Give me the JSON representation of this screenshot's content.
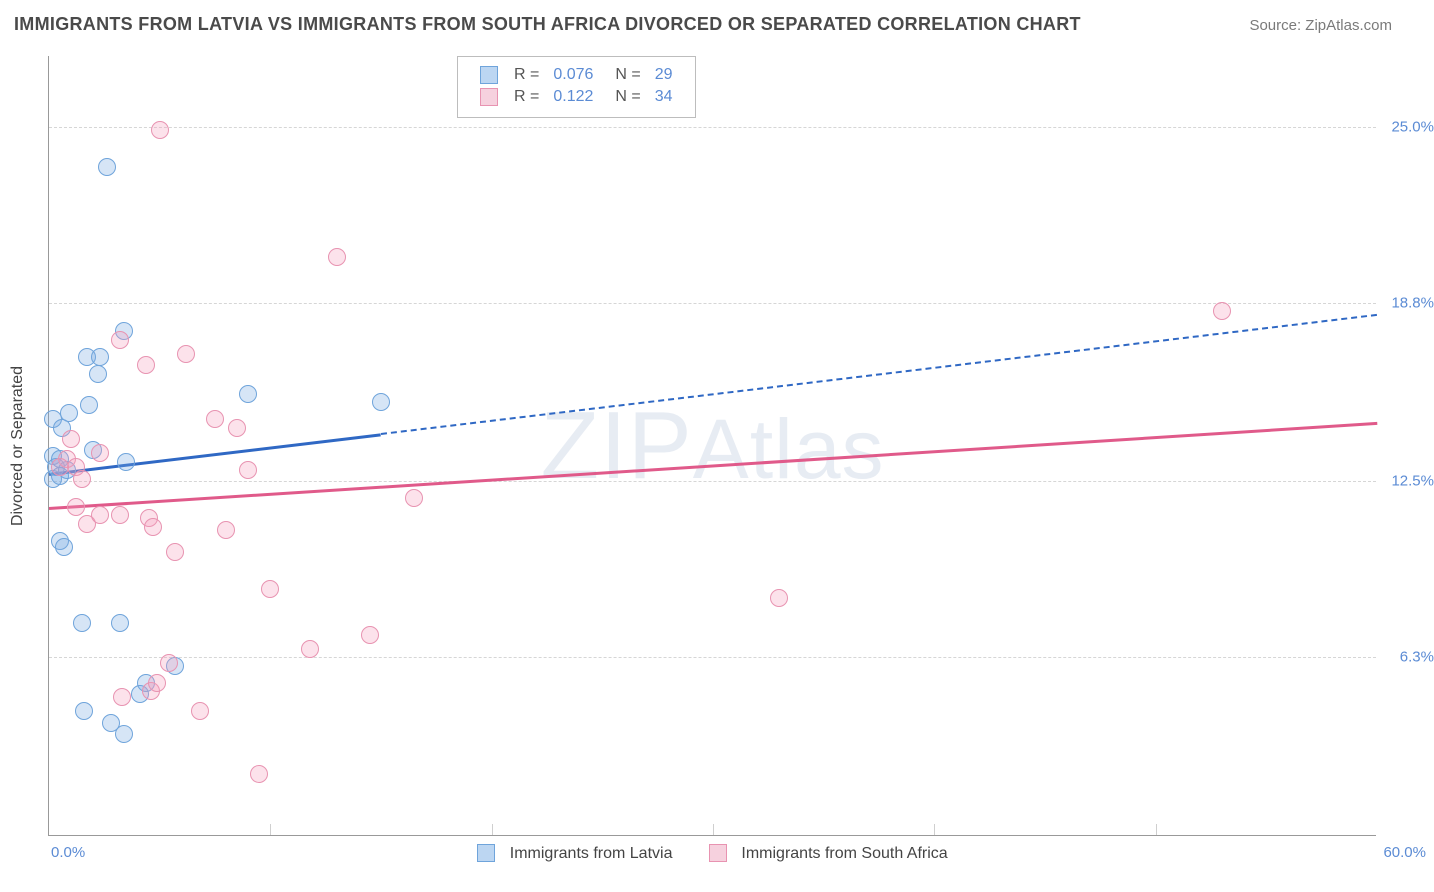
{
  "header": {
    "title": "IMMIGRANTS FROM LATVIA VS IMMIGRANTS FROM SOUTH AFRICA DIVORCED OR SEPARATED CORRELATION CHART",
    "source": "Source: ZipAtlas.com"
  },
  "chart": {
    "type": "scatter",
    "watermark": "ZIPAtlas",
    "yaxis": {
      "title": "Divorced or Separated",
      "min": 0.0,
      "max": 27.5,
      "ticks": [
        6.3,
        12.5,
        18.8,
        25.0
      ],
      "tick_suffix": "%",
      "label_color": "#5b8bd4",
      "label_fontsize": 15
    },
    "xaxis": {
      "min": 0.0,
      "max": 60.0,
      "minor_gridlines": [
        10,
        20,
        30,
        40,
        50
      ],
      "start_label": "0.0%",
      "end_label": "60.0%",
      "label_color": "#5b8bd4"
    },
    "grid_color": "#d6d6d6",
    "background_color": "#ffffff",
    "plot_border_color": "#999999",
    "marker_radius": 9,
    "marker_stroke_width": 1.5,
    "series": [
      {
        "name": "Immigrants from Latvia",
        "fill": "rgba(120,170,226,0.30)",
        "stroke": "#6fa4db",
        "swatch_fill": "#bcd6f2",
        "swatch_stroke": "#6fa4db",
        "line_color": "#2f68c4",
        "R": "0.076",
        "N": "29",
        "trend": {
          "x1": 0,
          "y1": 12.8,
          "x2_solid": 15,
          "x2": 60,
          "y2": 18.4
        },
        "points": [
          {
            "x": 2.6,
            "y": 23.6
          },
          {
            "x": 0.2,
            "y": 13.4
          },
          {
            "x": 0.3,
            "y": 13.0
          },
          {
            "x": 0.5,
            "y": 13.3
          },
          {
            "x": 0.2,
            "y": 12.6
          },
          {
            "x": 0.5,
            "y": 12.7
          },
          {
            "x": 0.8,
            "y": 12.9
          },
          {
            "x": 0.2,
            "y": 14.7
          },
          {
            "x": 0.6,
            "y": 14.4
          },
          {
            "x": 0.9,
            "y": 14.9
          },
          {
            "x": 1.7,
            "y": 16.9
          },
          {
            "x": 2.3,
            "y": 16.9
          },
          {
            "x": 2.2,
            "y": 16.3
          },
          {
            "x": 1.8,
            "y": 15.2
          },
          {
            "x": 3.5,
            "y": 13.2
          },
          {
            "x": 3.4,
            "y": 17.8
          },
          {
            "x": 2.0,
            "y": 13.6
          },
          {
            "x": 9.0,
            "y": 15.6
          },
          {
            "x": 15.0,
            "y": 15.3
          },
          {
            "x": 0.5,
            "y": 10.4
          },
          {
            "x": 0.7,
            "y": 10.2
          },
          {
            "x": 1.5,
            "y": 7.5
          },
          {
            "x": 3.2,
            "y": 7.5
          },
          {
            "x": 1.6,
            "y": 4.4
          },
          {
            "x": 4.1,
            "y": 5.0
          },
          {
            "x": 4.4,
            "y": 5.4
          },
          {
            "x": 5.7,
            "y": 6.0
          },
          {
            "x": 2.8,
            "y": 4.0
          },
          {
            "x": 3.4,
            "y": 3.6
          }
        ]
      },
      {
        "name": "Immigrants from South Africa",
        "fill": "rgba(244,160,190,0.30)",
        "stroke": "#e893b1",
        "swatch_fill": "#f6d1de",
        "swatch_stroke": "#e893b1",
        "line_color": "#e05a8a",
        "R": "0.122",
        "N": "34",
        "trend": {
          "x1": 0,
          "y1": 11.6,
          "x2_solid": 60,
          "x2": 60,
          "y2": 14.6
        },
        "points": [
          {
            "x": 5.0,
            "y": 24.9
          },
          {
            "x": 13.0,
            "y": 20.4
          },
          {
            "x": 53.0,
            "y": 18.5
          },
          {
            "x": 3.2,
            "y": 17.5
          },
          {
            "x": 6.2,
            "y": 17.0
          },
          {
            "x": 4.4,
            "y": 16.6
          },
          {
            "x": 7.5,
            "y": 14.7
          },
          {
            "x": 8.5,
            "y": 14.4
          },
          {
            "x": 9.0,
            "y": 12.9
          },
          {
            "x": 0.8,
            "y": 13.3
          },
          {
            "x": 1.2,
            "y": 13.0
          },
          {
            "x": 1.5,
            "y": 12.6
          },
          {
            "x": 2.3,
            "y": 13.5
          },
          {
            "x": 16.5,
            "y": 11.9
          },
          {
            "x": 33.0,
            "y": 8.4
          },
          {
            "x": 1.2,
            "y": 11.6
          },
          {
            "x": 1.7,
            "y": 11.0
          },
          {
            "x": 2.3,
            "y": 11.3
          },
          {
            "x": 3.2,
            "y": 11.3
          },
          {
            "x": 4.5,
            "y": 11.2
          },
          {
            "x": 4.7,
            "y": 10.9
          },
          {
            "x": 8.0,
            "y": 10.8
          },
          {
            "x": 5.7,
            "y": 10.0
          },
          {
            "x": 10.0,
            "y": 8.7
          },
          {
            "x": 11.8,
            "y": 6.6
          },
          {
            "x": 14.5,
            "y": 7.1
          },
          {
            "x": 4.6,
            "y": 5.1
          },
          {
            "x": 4.9,
            "y": 5.4
          },
          {
            "x": 6.8,
            "y": 4.4
          },
          {
            "x": 5.4,
            "y": 6.1
          },
          {
            "x": 3.3,
            "y": 4.9
          },
          {
            "x": 9.5,
            "y": 2.2
          },
          {
            "x": 0.5,
            "y": 13.0
          },
          {
            "x": 1.0,
            "y": 14.0
          }
        ]
      }
    ],
    "legend": {
      "R_label": "R =",
      "N_label": "N ="
    },
    "bottom_legend_labels": [
      "Immigrants from Latvia",
      "Immigrants from South Africa"
    ]
  }
}
